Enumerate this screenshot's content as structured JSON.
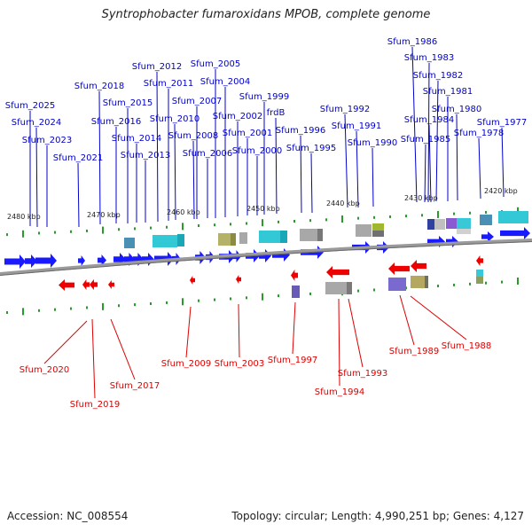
{
  "title": "Syntrophobacter fumaroxidans MPOB, complete genome",
  "footer": {
    "accession": "Accession: NC_008554",
    "summary": "Topology: circular; Length: 4,990,251 bp; Genes: 4,127"
  },
  "colors": {
    "forward": "#1a1aff",
    "reverse": "#ee0000",
    "forward_label": "#0000cc",
    "reverse_label": "#dd0000",
    "tick": "#2a9a2a",
    "backbone": "#888888"
  },
  "scale_labels": [
    "2480 kbp",
    "2470 kbp",
    "2460 kbp",
    "2450 kbp",
    "2440 kbp",
    "2430 kbp",
    "2420 kbp"
  ],
  "forward_genes": [
    "Sfum_2025",
    "Sfum_2024",
    "Sfum_2023",
    "Sfum_2021",
    "Sfum_2018",
    "Sfum_2016",
    "Sfum_2015",
    "Sfum_2014",
    "Sfum_2013",
    "Sfum_2012",
    "Sfum_2011",
    "Sfum_2010",
    "Sfum_2008",
    "Sfum_2007",
    "Sfum_2006",
    "Sfum_2005",
    "Sfum_2004",
    "Sfum_2002",
    "Sfum_2001",
    "Sfum_2000",
    "Sfum_1999",
    "frdB",
    "Sfum_1996",
    "Sfum_1995",
    "Sfum_1992",
    "Sfum_1991",
    "Sfum_1990",
    "Sfum_1986",
    "Sfum_1983",
    "Sfum_1982",
    "Sfum_1981",
    "Sfum_1984",
    "Sfum_1985",
    "Sfum_1980",
    "Sfum_1978",
    "Sfum_1977"
  ],
  "reverse_genes": [
    "Sfum_2020",
    "Sfum_2019",
    "Sfum_2017",
    "Sfum_2009",
    "Sfum_2003",
    "Sfum_1997",
    "Sfum_1994",
    "Sfum_1993",
    "Sfum_1989",
    "Sfum_1988"
  ]
}
